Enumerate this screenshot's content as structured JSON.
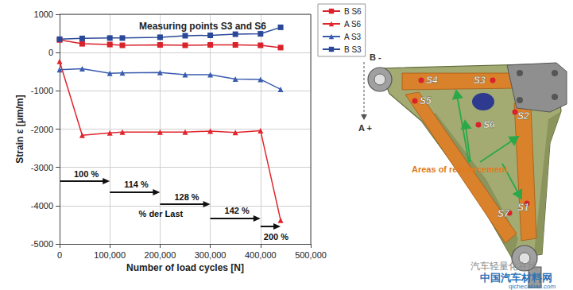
{
  "chart_data": {
    "type": "line",
    "title": "Measuring points S3 and S6",
    "x_label": "Number of load cycles [N]",
    "y_label": "Strain ε [μm/m]",
    "xlim": [
      0,
      500000
    ],
    "xticks": [
      0,
      {
        "value": 100000,
        "label": "100,000"
      },
      {
        "value": 200000,
        "label": "200,000"
      },
      {
        "value": 300000,
        "label": "300,000"
      },
      {
        "value": 400000,
        "label": "400,000"
      },
      {
        "value": 500000,
        "label": "500,000"
      }
    ],
    "ylim": [
      -5000,
      1000
    ],
    "yticks": [
      -5000,
      -4000,
      -3000,
      -2000,
      -1000,
      0,
      1000
    ],
    "grid": true,
    "legend": "top-right",
    "x": [
      0,
      45000,
      100000,
      125000,
      200000,
      250000,
      300000,
      350000,
      400000,
      440000
    ],
    "series": [
      {
        "name": "B S6",
        "color": "#d9222a",
        "marker": "square",
        "values": [
          330,
          230,
          210,
          190,
          200,
          190,
          200,
          200,
          190,
          130
        ]
      },
      {
        "name": "A S6",
        "color": "#e0252d",
        "marker": "triangle",
        "values": [
          -230,
          -2160,
          -2100,
          -2080,
          -2080,
          -2080,
          -2050,
          -2090,
          -2040,
          -4380
        ]
      },
      {
        "name": "A S3",
        "color": "#3a5cae",
        "marker": "triangle",
        "values": [
          -450,
          -420,
          -540,
          -530,
          -520,
          -580,
          -580,
          -690,
          -700,
          -960
        ]
      },
      {
        "name": "B S3",
        "color": "#2a4898",
        "marker": "square",
        "values": [
          350,
          370,
          380,
          380,
          400,
          440,
          450,
          480,
          490,
          660
        ]
      }
    ],
    "load_steps": [
      {
        "label": "100 %",
        "from": 0,
        "to": 100000
      },
      {
        "label": "114 %",
        "from": 100000,
        "to": 200000
      },
      {
        "label": "128 %",
        "from": 200000,
        "to": 300000
      },
      {
        "label": "142 %",
        "from": 300000,
        "to": 400000
      },
      {
        "label": "200 %",
        "from": 400000,
        "to": 440000
      }
    ],
    "load_caption": "% der Last"
  },
  "diagram": {
    "direction_labels": [
      "B -",
      "A +"
    ],
    "measuring_points": [
      "S4",
      "S3",
      "S5",
      "S6",
      "S2",
      "S7",
      "S1"
    ],
    "caption": "Areas of reinforcement",
    "watermark": [
      "汽车轻量化在线",
      "中国汽车材料网",
      "qichecailiao.com"
    ]
  }
}
